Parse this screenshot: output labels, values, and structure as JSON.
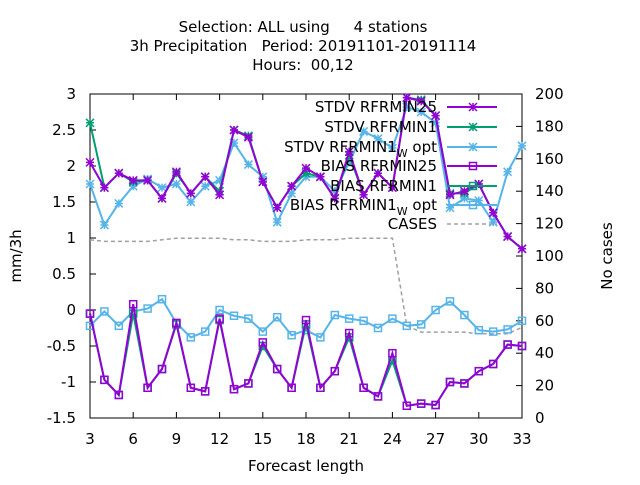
{
  "chart_data": {
    "type": "line",
    "title_lines": [
      "Selection: ALL using     4 stations",
      "3h Precipitation   Period: 20191101-20191114",
      "Hours:  00,12"
    ],
    "xlabel": "Forecast length",
    "ylabel": "mm/3h",
    "y2label": "No cases",
    "x_ticks": [
      "3",
      "6",
      "9",
      "12",
      "15",
      "18",
      "21",
      "24",
      "27",
      "30",
      "33"
    ],
    "y_ticks": [
      "-1.5",
      "-1",
      "-0.5",
      "0",
      "0.5",
      "1",
      "1.5",
      "2",
      "2.5",
      "3"
    ],
    "y2_ticks": [
      "0",
      "20",
      "40",
      "60",
      "80",
      "100",
      "120",
      "140",
      "160",
      "180",
      "200"
    ],
    "xlim": [
      3,
      33
    ],
    "ylim": [
      -1.5,
      3
    ],
    "y2lim": [
      0,
      200
    ],
    "legend_placement": "top-right",
    "x": [
      3,
      4,
      5,
      6,
      7,
      8,
      9,
      10,
      11,
      12,
      13,
      14,
      15,
      16,
      17,
      18,
      19,
      20,
      21,
      22,
      23,
      24,
      25,
      26,
      27,
      28,
      29,
      30,
      31,
      32,
      33
    ],
    "series": [
      {
        "name": "STDV RFRMIN25",
        "label_html": "STDV RFRMIN25",
        "color": "#9400d3",
        "marker": "x",
        "axis": "y1",
        "values": [
          2.05,
          1.7,
          1.9,
          1.8,
          1.8,
          1.55,
          1.92,
          1.62,
          1.85,
          1.6,
          2.5,
          2.4,
          1.78,
          1.42,
          1.72,
          1.97,
          1.85,
          1.55,
          2.2,
          1.6,
          1.9,
          1.7,
          2.95,
          2.9,
          2.7,
          1.6,
          1.65,
          1.75,
          1.35,
          1.02,
          0.85
        ]
      },
      {
        "name": "STDV RFRMIN1",
        "label_html": "STDV RFRMIN1",
        "color": "#009e73",
        "marker": "x",
        "axis": "y1",
        "values": [
          2.6,
          1.7,
          1.9,
          1.78,
          1.8,
          1.55,
          1.9,
          1.62,
          1.85,
          1.65,
          2.5,
          2.42,
          1.78,
          1.42,
          1.72,
          1.9,
          1.85,
          1.55,
          2.15,
          1.6,
          1.9,
          1.7,
          2.95,
          2.92,
          2.7,
          1.62,
          1.62,
          1.75,
          1.35,
          1.02,
          0.85
        ]
      },
      {
        "name": "STDV RFRMIN1_W opt",
        "label_html": "STDV RFRMIN1",
        "label_sub": "W",
        "label_suffix": " opt",
        "color": "#56b4e9",
        "marker": "x",
        "axis": "y1",
        "values": [
          1.75,
          1.18,
          1.48,
          1.72,
          1.82,
          1.7,
          1.75,
          1.5,
          1.72,
          1.8,
          2.32,
          2.02,
          1.85,
          1.22,
          1.62,
          1.85,
          1.85,
          1.65,
          2.05,
          2.48,
          2.38,
          2.25,
          2.82,
          2.75,
          2.6,
          1.42,
          1.55,
          1.52,
          1.22,
          1.92,
          2.28
        ]
      },
      {
        "name": "BIAS RFRMIN25",
        "label_html": "BIAS RFRMIN25",
        "color": "#9400d3",
        "marker": "square",
        "axis": "y1",
        "values": [
          -0.05,
          -0.97,
          -1.18,
          0.08,
          -1.08,
          -0.82,
          -0.18,
          -1.08,
          -1.13,
          -0.12,
          -1.1,
          -1.02,
          -0.45,
          -0.82,
          -1.08,
          -0.14,
          -1.08,
          -0.85,
          -0.32,
          -1.08,
          -1.2,
          -0.6,
          -1.33,
          -1.3,
          -1.32,
          -1.0,
          -1.02,
          -0.85,
          -0.75,
          -0.48,
          -0.5
        ]
      },
      {
        "name": "BIAS RFRMIN1",
        "label_html": "BIAS RFRMIN1",
        "color": "#009e73",
        "marker": "square",
        "axis": "y1",
        "values": [
          -0.05,
          -0.97,
          -1.18,
          -0.05,
          -1.08,
          -0.82,
          -0.2,
          -1.08,
          -1.13,
          -0.14,
          -1.1,
          -1.02,
          -0.5,
          -0.82,
          -1.08,
          -0.2,
          -1.08,
          -0.85,
          -0.38,
          -1.08,
          -1.2,
          -0.7,
          -1.33,
          -1.3,
          -1.32,
          -1.0,
          -1.02,
          -0.85,
          -0.75,
          -0.48,
          -0.5
        ]
      },
      {
        "name": "BIAS RFRMIN1_W opt",
        "label_html": "BIAS RFRMIN1",
        "label_sub": "W",
        "label_suffix": " opt",
        "color": "#56b4e9",
        "marker": "square",
        "axis": "y1",
        "values": [
          -0.22,
          -0.02,
          -0.22,
          -0.02,
          0.02,
          0.15,
          -0.18,
          -0.38,
          -0.3,
          0.0,
          -0.08,
          -0.12,
          -0.3,
          -0.1,
          -0.35,
          -0.28,
          -0.38,
          -0.07,
          -0.12,
          -0.15,
          -0.25,
          -0.12,
          -0.22,
          -0.2,
          0.0,
          0.12,
          -0.07,
          -0.28,
          -0.3,
          -0.27,
          -0.15
        ]
      },
      {
        "name": "CASES",
        "label_html": "CASES",
        "color": "#a0a0a0",
        "marker": "none",
        "dashed": true,
        "axis": "y2",
        "values": [
          110,
          109,
          109,
          109,
          109,
          110,
          111,
          111,
          111,
          111,
          110,
          110,
          109,
          109,
          109,
          110,
          110,
          110,
          111,
          111,
          111,
          111,
          57,
          53,
          53,
          53,
          53,
          52,
          52,
          52,
          56
        ]
      }
    ]
  }
}
